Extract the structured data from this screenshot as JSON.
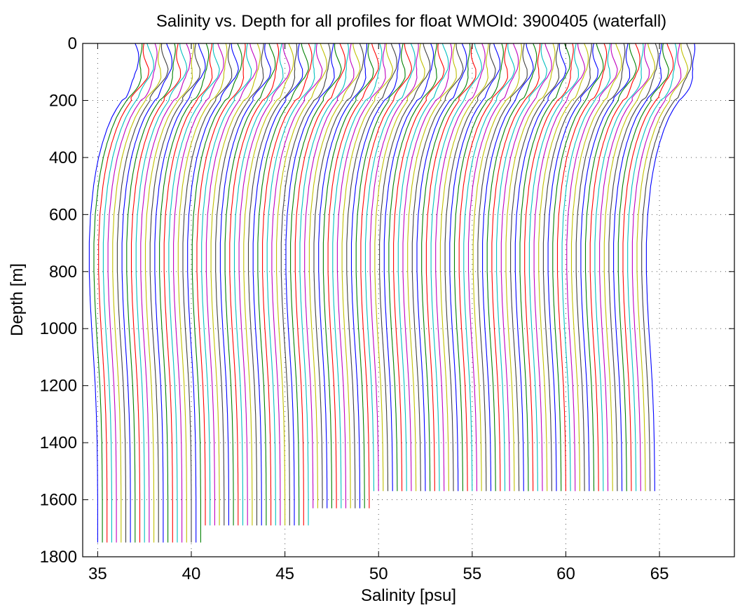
{
  "chart_data": {
    "type": "line",
    "title": "Salinity vs. Depth for all profiles for float WMOId: 3900405 (waterfall)",
    "xlabel": "Salinity [psu]",
    "ylabel": "Depth [m]",
    "xlim": [
      34.2,
      69.0
    ],
    "ylim": [
      0,
      1800
    ],
    "y_reversed": true,
    "xticks": [
      35,
      40,
      45,
      50,
      55,
      60,
      65
    ],
    "yticks": [
      0,
      200,
      400,
      600,
      800,
      1000,
      1200,
      1400,
      1600,
      1800
    ],
    "grid": true,
    "grid_style": "dotted",
    "layout_type": "waterfall",
    "profile_count": 120,
    "profile_offset_psu": 0.25,
    "first_profile_shape": {
      "depth": [
        0,
        30,
        60,
        90,
        120,
        150,
        180,
        200,
        230,
        260,
        300,
        350,
        400,
        450,
        500,
        600,
        700,
        800,
        900,
        1000,
        1100,
        1200,
        1300,
        1400,
        1500,
        1600,
        1700,
        1750
      ],
      "salinity": [
        37.0,
        37.05,
        37.1,
        37.15,
        37.05,
        36.8,
        36.5,
        36.3,
        36.0,
        35.75,
        35.5,
        35.25,
        35.05,
        34.9,
        34.78,
        34.62,
        34.55,
        34.55,
        34.6,
        34.68,
        34.78,
        34.87,
        34.93,
        34.97,
        34.99,
        35.0,
        35.0,
        35.0
      ]
    },
    "profile_max_depth_groups": [
      {
        "from_profile": 0,
        "to_profile": 22,
        "max_depth": 1750
      },
      {
        "from_profile": 23,
        "to_profile": 45,
        "max_depth": 1690
      },
      {
        "from_profile": 46,
        "to_profile": 58,
        "max_depth": 1635
      },
      {
        "from_profile": 59,
        "to_profile": 119,
        "max_depth": 1570
      }
    ],
    "series_colors": [
      "#0000ff",
      "#008000",
      "#ff0000",
      "#00bfbf",
      "#bf00bf",
      "#bfbf00",
      "#404040"
    ]
  }
}
